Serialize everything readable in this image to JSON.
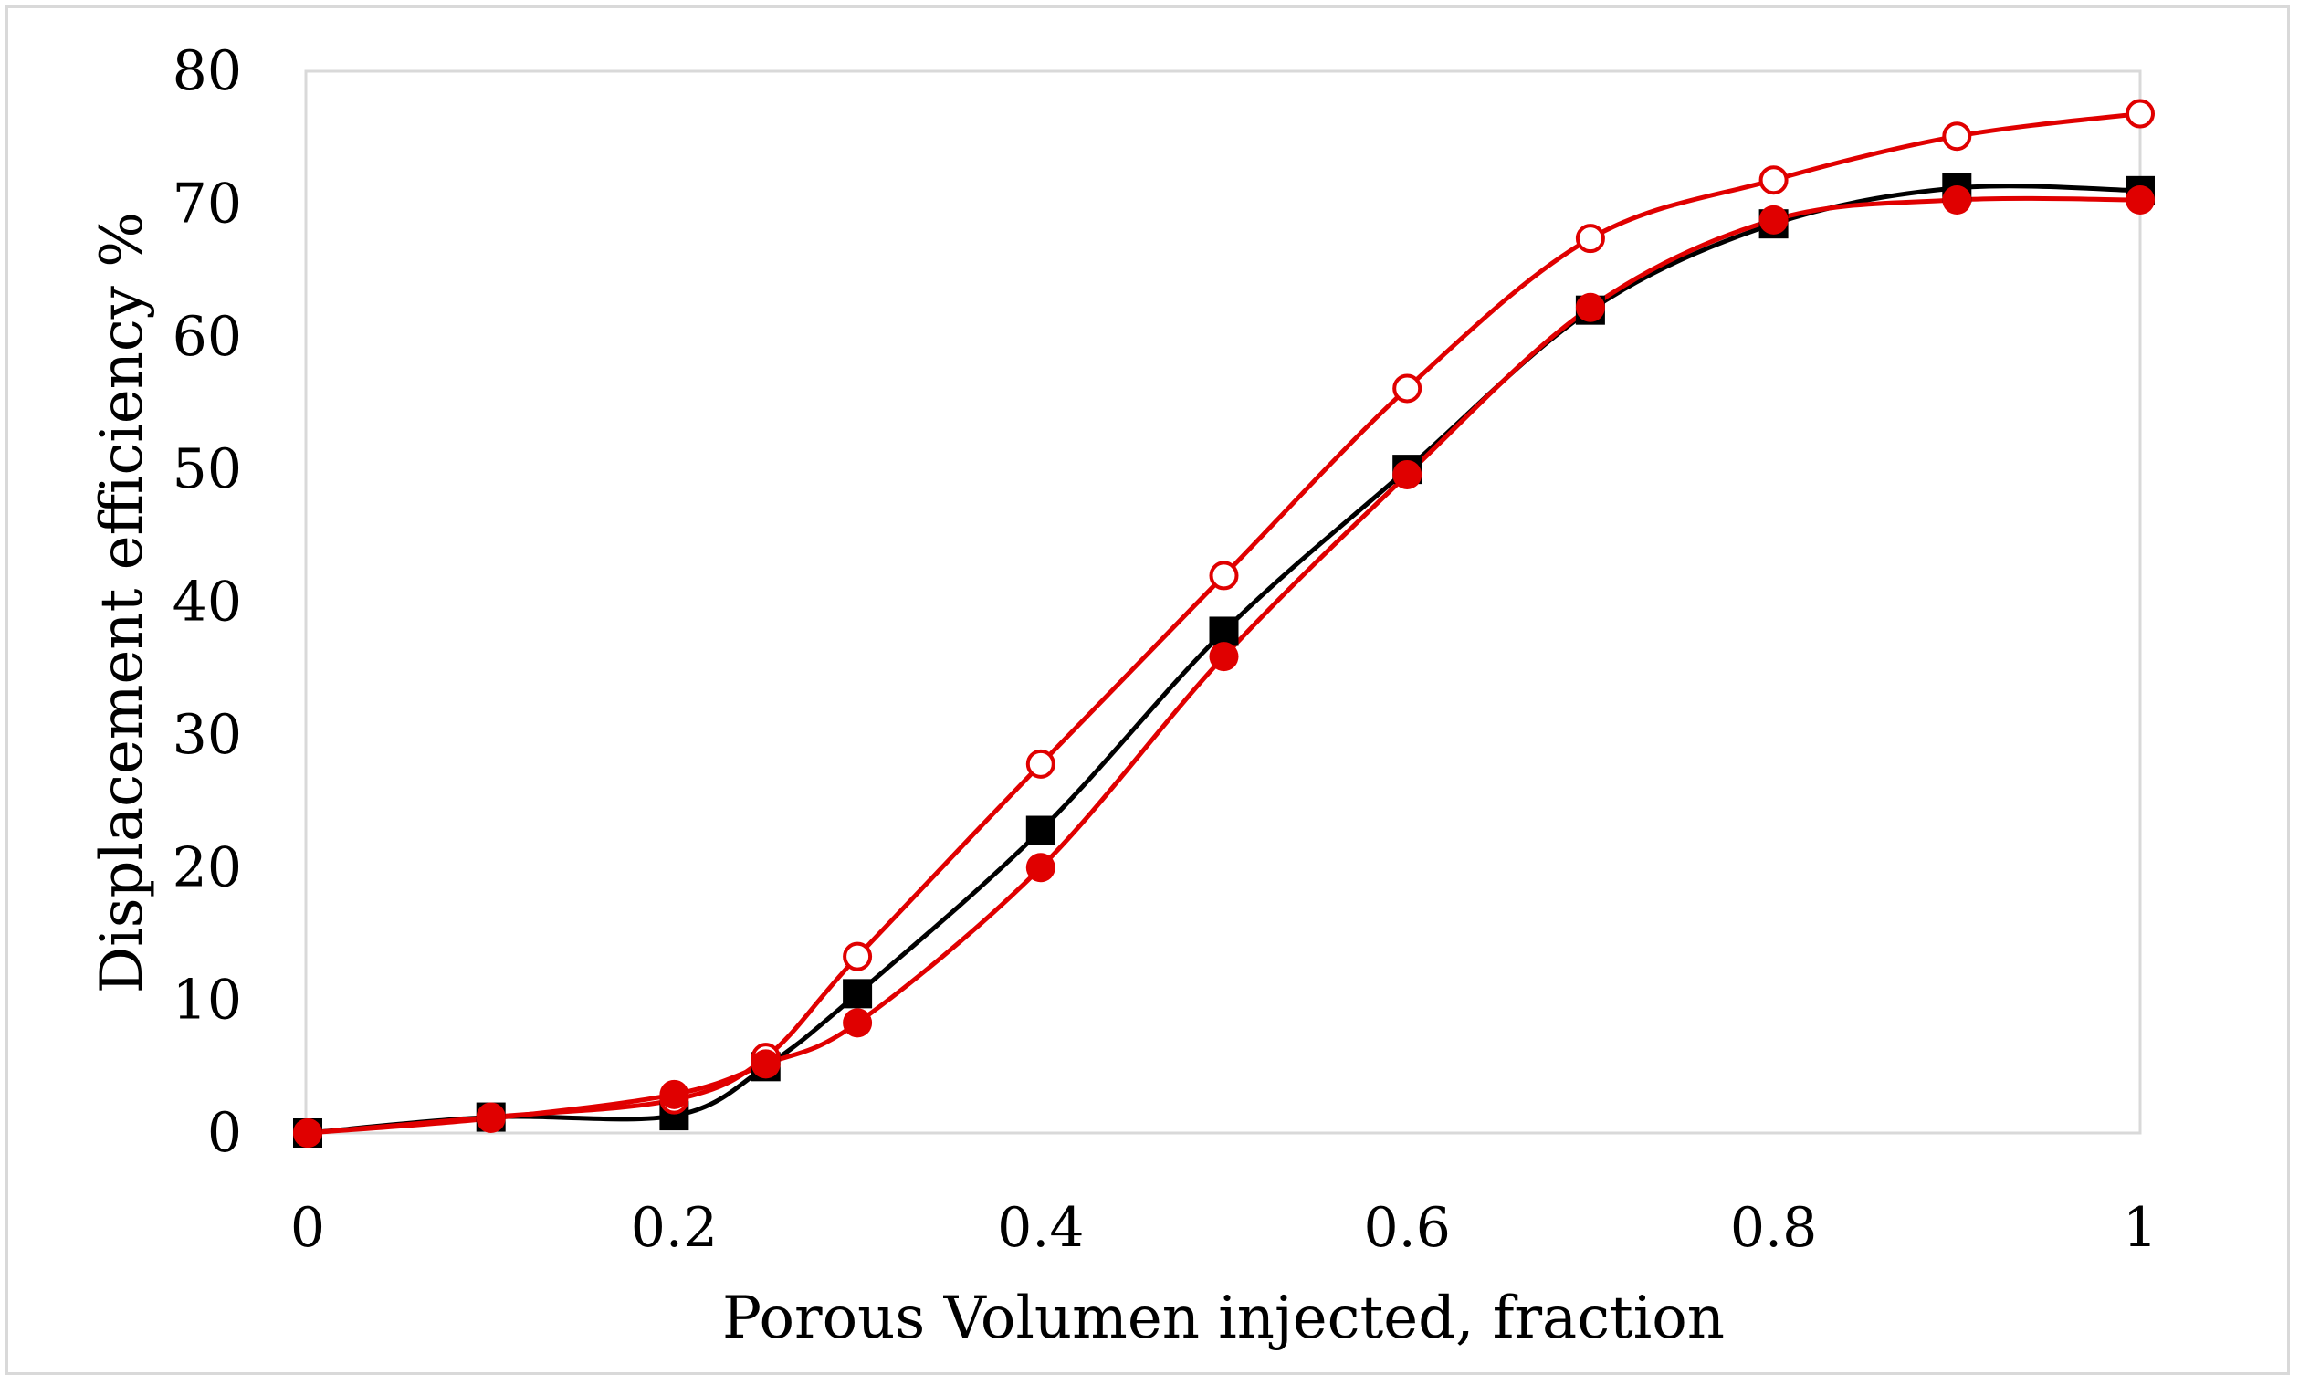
{
  "chart_data": {
    "type": "line",
    "title": "",
    "xlabel": "Porous Volumen injected, fraction",
    "ylabel": "Displacement efficiency  %",
    "xlim": [
      0,
      1
    ],
    "ylim": [
      0,
      80
    ],
    "x_ticks": [
      0,
      0.2,
      0.4,
      0.6,
      0.8,
      1
    ],
    "x_tick_labels": [
      "0",
      "0.2",
      "0.4",
      "0.6",
      "0.8",
      "1"
    ],
    "y_ticks": [
      0,
      10,
      20,
      30,
      40,
      50,
      60,
      70,
      80
    ],
    "y_tick_labels": [
      "0",
      "10",
      "20",
      "30",
      "40",
      "50",
      "60",
      "70",
      "80"
    ],
    "grid": false,
    "legend": "none",
    "series": [
      {
        "name": "black squares",
        "color": "#000000",
        "marker": "square-filled",
        "x": [
          0,
          0.1,
          0.2,
          0.25,
          0.3,
          0.4,
          0.5,
          0.6,
          0.7,
          0.8,
          0.9,
          1.0
        ],
        "values": [
          0,
          1.2,
          1.3,
          5.0,
          10.5,
          22.8,
          37.8,
          50.0,
          62.0,
          68.5,
          71.2,
          71.0
        ]
      },
      {
        "name": "red open circles",
        "color": "#e00000",
        "marker": "circle-open",
        "x": [
          0,
          0.1,
          0.2,
          0.25,
          0.3,
          0.4,
          0.5,
          0.6,
          0.7,
          0.8,
          0.9,
          1.0
        ],
        "values": [
          0,
          1.2,
          2.5,
          5.7,
          13.3,
          27.8,
          42.0,
          56.1,
          67.4,
          71.8,
          75.1,
          76.8
        ]
      },
      {
        "name": "red filled circles",
        "color": "#e00000",
        "marker": "circle-filled",
        "x": [
          0,
          0.1,
          0.2,
          0.25,
          0.3,
          0.4,
          0.5,
          0.6,
          0.7,
          0.8,
          0.9,
          1.0
        ],
        "values": [
          0,
          1.1,
          2.9,
          5.2,
          8.3,
          20.0,
          35.9,
          49.6,
          62.2,
          68.8,
          70.3,
          70.3
        ]
      }
    ]
  }
}
